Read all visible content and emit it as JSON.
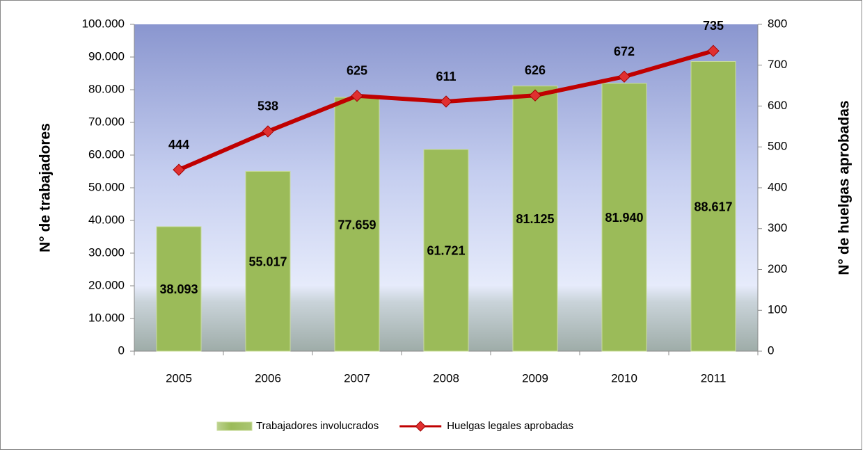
{
  "chart_data": {
    "type": "bar",
    "categories": [
      "2005",
      "2006",
      "2007",
      "2008",
      "2009",
      "2010",
      "2011"
    ],
    "series": [
      {
        "name": "Trabajadores involucrados",
        "type": "bar",
        "color": "#9bbb59",
        "values": [
          38093,
          55017,
          77659,
          61721,
          81125,
          81940,
          88617
        ],
        "value_labels": [
          "38.093",
          "55.017",
          "77.659",
          "61.721",
          "81.125",
          "81.940",
          "88.617"
        ]
      },
      {
        "name": "Huelgas legales aprobadas",
        "type": "line",
        "axis": "y2",
        "color": "#c00000",
        "values": [
          444,
          538,
          625,
          611,
          626,
          672,
          735
        ]
      }
    ],
    "ylabel": "N° de trabajadores",
    "y2label": "N° de huelgas aprobadas",
    "ylim": [
      0,
      100000
    ],
    "yticks": [
      0,
      {
        "value": 10000,
        "label": "10.000"
      },
      {
        "value": 20000,
        "label": "20.000"
      },
      {
        "value": 30000,
        "label": "30.000"
      },
      {
        "value": 40000,
        "label": "40.000"
      },
      {
        "value": 50000,
        "label": "50.000"
      },
      {
        "value": 60000,
        "label": "60.000"
      },
      {
        "value": 70000,
        "label": "70.000"
      },
      {
        "value": 80000,
        "label": "80.000"
      },
      {
        "value": 90000,
        "label": "90.000"
      },
      {
        "value": 100000,
        "label": "100.000"
      }
    ],
    "y2lim": [
      0,
      800
    ],
    "y2ticks": [
      0,
      100,
      200,
      300,
      400,
      500,
      600,
      700,
      800
    ],
    "legend": "bottom",
    "grid": false
  }
}
